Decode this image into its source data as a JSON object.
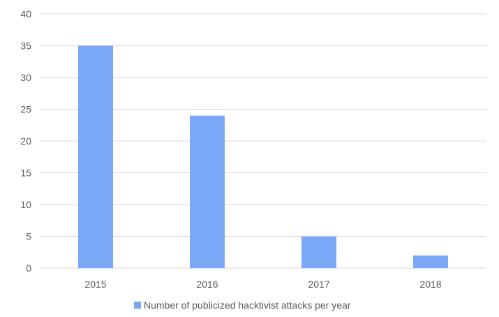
{
  "chart_data": {
    "type": "bar",
    "categories": [
      "2015",
      "2016",
      "2017",
      "2018"
    ],
    "series": [
      {
        "name": "Number of publicized hacktivist attacks per year",
        "values": [
          35,
          24,
          5,
          2
        ],
        "color": "#7ba7f7"
      }
    ],
    "ylim": [
      0,
      40
    ],
    "yticks": [
      0,
      5,
      10,
      15,
      20,
      25,
      30,
      35,
      40
    ],
    "grid": true,
    "grid_color": "#d9d9d9",
    "legend_position": "bottom-center",
    "title": "",
    "xlabel": "",
    "ylabel": ""
  }
}
